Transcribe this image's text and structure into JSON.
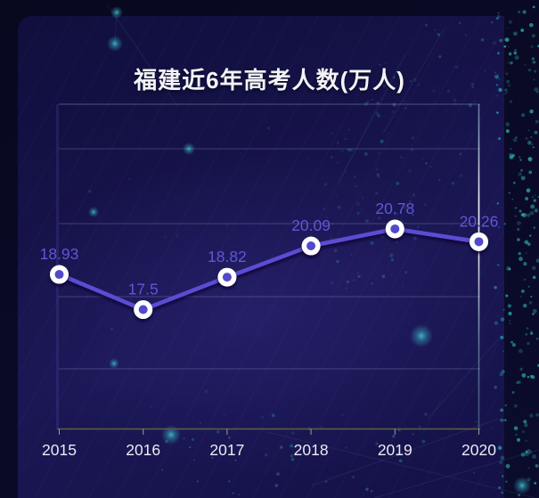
{
  "page": {
    "title": "福建近6年高考人数(万人)"
  },
  "chart_data": {
    "type": "line",
    "title": "福建近6年高考人数(万人)",
    "categories": [
      "2015",
      "2016",
      "2017",
      "2018",
      "2019",
      "2020"
    ],
    "series": [
      {
        "name": "高考人数",
        "values": [
          18.93,
          17.5,
          18.82,
          20.09,
          20.78,
          20.26
        ]
      }
    ],
    "unit": "万人",
    "xlabel": "",
    "ylabel": "",
    "data_labels_visible": true,
    "y_axis_tick_labels_visible": false,
    "grid": true,
    "legend": "none",
    "pointer_category": "2020"
  },
  "colors": {
    "series_line": "#5a4dd2",
    "marker_inner": "#5348cb",
    "marker_ring": "#ffffff",
    "data_label": "#6156d6",
    "x_axis_label": "#ebebf3",
    "x_axis_line": "#5f5f45",
    "x_axis_tick": "#9d9d8d",
    "gridline": "#b9bed7",
    "pointer_line": "#aadde6",
    "title_text": "#f3f3f7",
    "particle_teal": "#2fb3b8",
    "card_background": "#151248",
    "outer_background": "#08081f"
  }
}
